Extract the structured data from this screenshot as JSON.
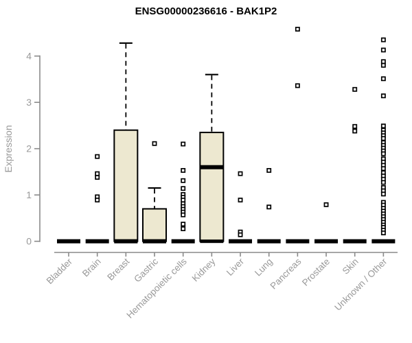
{
  "chart_data": {
    "type": "boxplot",
    "title": "ENSG00000236616 - BAK1P2",
    "ylabel": "Expression",
    "xlabel": "",
    "yticks": [
      0,
      1,
      2,
      3,
      4
    ],
    "ylim": [
      0,
      4.65
    ],
    "grid": false,
    "legend": "none",
    "style": {
      "box_fill": "#EDE8D0",
      "box_border": "#000000",
      "median_color": "#000000",
      "whisker_color": "#000000",
      "outlier_shape": "open-square",
      "axis_color": "#8a8a8a",
      "tick_label_color": "#999999",
      "title_color": "#000000"
    },
    "categories": [
      "Bladder",
      "Brain",
      "Breast",
      "Gastric",
      "Hematopoietic cells",
      "Kidney",
      "Liver",
      "Lung",
      "Pancreas",
      "Prostate",
      "Skin",
      "Unknown / Other"
    ],
    "boxes": [
      {
        "category": "Bladder",
        "min": 0,
        "q1": 0,
        "median": 0,
        "q3": 0,
        "max": 0,
        "outliers": []
      },
      {
        "category": "Brain",
        "min": 0,
        "q1": 0,
        "median": 0,
        "q3": 0,
        "max": 0,
        "outliers": [
          1.83,
          1.46,
          1.38,
          0.96,
          0.89
        ]
      },
      {
        "category": "Breast",
        "min": 0,
        "q1": 0,
        "median": 0,
        "q3": 2.4,
        "max": 4.28,
        "outliers": []
      },
      {
        "category": "Gastric",
        "min": 0,
        "q1": 0,
        "median": 0,
        "q3": 0.7,
        "max": 1.15,
        "outliers": [
          2.11
        ]
      },
      {
        "category": "Hematopoietic cells",
        "min": 0,
        "q1": 0,
        "median": 0,
        "q3": 0,
        "max": 0,
        "outliers": [
          2.1,
          1.53,
          1.31,
          1.14,
          1.01,
          0.95,
          0.89,
          0.81,
          0.75,
          0.69,
          0.63,
          0.57,
          0.37,
          0.27
        ]
      },
      {
        "category": "Kidney",
        "min": 0,
        "q1": 0,
        "median": 1.6,
        "q3": 2.35,
        "max": 3.6,
        "outliers": []
      },
      {
        "category": "Liver",
        "min": 0,
        "q1": 0,
        "median": 0,
        "q3": 0,
        "max": 0,
        "outliers": [
          1.46,
          0.89,
          0.2,
          0.14
        ]
      },
      {
        "category": "Lung",
        "min": 0,
        "q1": 0,
        "median": 0,
        "q3": 0,
        "max": 0,
        "outliers": [
          1.53,
          0.74
        ]
      },
      {
        "category": "Pancreas",
        "min": 0,
        "q1": 0,
        "median": 0,
        "q3": 0,
        "max": 0,
        "outliers": [
          4.58,
          3.36
        ]
      },
      {
        "category": "Prostate",
        "min": 0,
        "q1": 0,
        "median": 0,
        "q3": 0,
        "max": 0,
        "outliers": [
          0.79
        ]
      },
      {
        "category": "Skin",
        "min": 0,
        "q1": 0,
        "median": 0,
        "q3": 0,
        "max": 0,
        "outliers": [
          3.28,
          2.48,
          2.38
        ]
      },
      {
        "category": "Unknown / Other",
        "min": 0,
        "q1": 0,
        "median": 0,
        "q3": 0,
        "max": 0,
        "outliers": [
          4.35,
          4.13,
          3.88,
          3.8,
          3.51,
          3.14,
          2.49,
          2.4,
          2.34,
          2.28,
          2.22,
          2.13,
          2.07,
          2.01,
          1.95,
          1.89,
          1.78,
          1.71,
          1.64,
          1.57,
          1.48,
          1.41,
          1.34,
          1.27,
          1.16,
          1.09,
          1.02,
          0.84,
          0.78,
          0.71,
          0.65,
          0.59,
          0.53,
          0.47,
          0.41,
          0.35,
          0.3,
          0.24,
          0.18
        ]
      }
    ]
  }
}
